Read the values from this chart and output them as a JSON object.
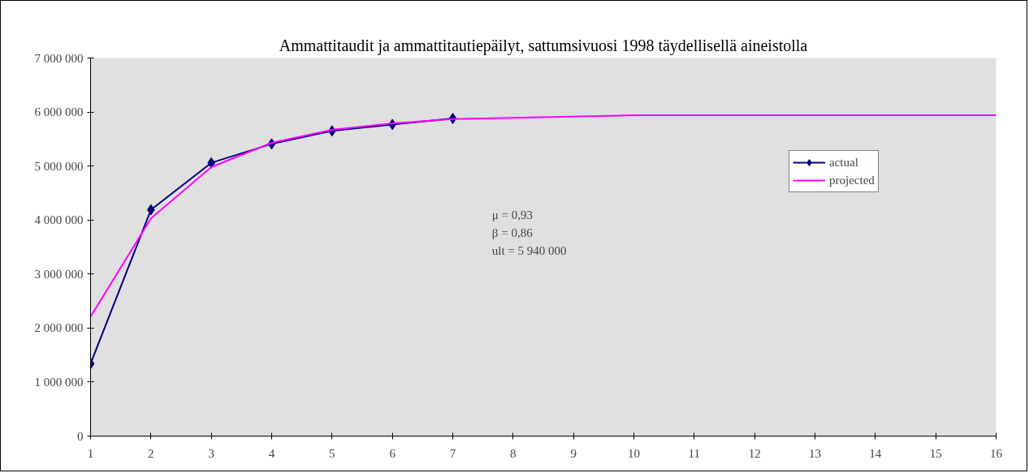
{
  "chart_data": {
    "type": "line",
    "title": "Ammattitaudit ja ammattitautiepäilyt, sattumsivuosi 1998 täydellisellä aineistolla",
    "xlim": [
      1,
      16
    ],
    "xticks": [
      1,
      2,
      3,
      4,
      5,
      6,
      7,
      8,
      9,
      10,
      11,
      12,
      13,
      14,
      15,
      16
    ],
    "ylim": [
      0,
      7000000
    ],
    "yticks": [
      0,
      {
        "value": 1000000,
        "label": "1 000 000"
      },
      {
        "value": 2000000,
        "label": "2 000 000"
      },
      {
        "value": 3000000,
        "label": "3 000 000"
      },
      {
        "value": 4000000,
        "label": "4 000 000"
      },
      {
        "value": 5000000,
        "label": "5 000 000"
      },
      {
        "value": 6000000,
        "label": "6 000 000"
      },
      {
        "value": 7000000,
        "label": "7 000 000"
      }
    ],
    "series": [
      {
        "name": "actual",
        "color": "#000080",
        "marker": "diamond",
        "x": [
          1,
          2,
          3,
          4,
          5,
          6,
          7
        ],
        "values": [
          1340000,
          4190000,
          5060000,
          5410000,
          5650000,
          5770000,
          5880000
        ]
      },
      {
        "name": "projected",
        "color": "#ff00ff",
        "marker": "none",
        "x": [
          1,
          2,
          3,
          4,
          5,
          6,
          7,
          10,
          11,
          12,
          13,
          14,
          15,
          16
        ],
        "values": [
          2210000,
          4030000,
          4980000,
          5430000,
          5670000,
          5790000,
          5870000,
          5940000,
          5940000,
          5940000,
          5940000,
          5940000,
          5940000,
          5940000
        ]
      }
    ],
    "annotations": [
      "μ = 0,93",
      "β = 0,86",
      "ult = 5 940 000"
    ],
    "legend": "right"
  }
}
